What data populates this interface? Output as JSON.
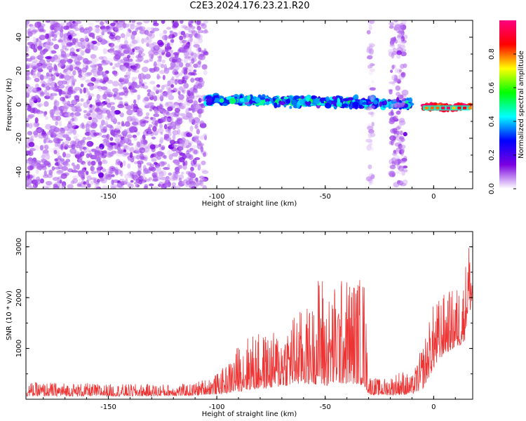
{
  "figure": {
    "title": "C2E3.2024.176.23.21.R20"
  },
  "chart_data": [
    {
      "type": "heatmap",
      "xlabel": "Height of straight line (km)",
      "ylabel": "Frequency (Hz)",
      "xlim": [
        -188,
        18
      ],
      "ylim": [
        -50,
        50
      ],
      "xticks": [
        -150,
        -100,
        -50,
        0
      ],
      "yticks": [
        -40,
        -20,
        0,
        20,
        40
      ],
      "grid": false,
      "colorbar": {
        "label": "Normalized spectral amplitude",
        "range": [
          0.0,
          1.0
        ],
        "ticks": [
          0.0,
          0.2,
          0.4,
          0.6,
          0.8
        ],
        "colormap": [
          "#ffffff",
          "#7a00e0",
          "#0000ff",
          "#00ffff",
          "#00ff00",
          "#ffff00",
          "#ff0000",
          "#ff0080"
        ]
      },
      "regions": [
        {
          "x": [
            -188,
            -105
          ],
          "y": [
            -50,
            50
          ],
          "amplitude": 0.08,
          "pattern": "scattered noise"
        },
        {
          "x": [
            -105,
            -10
          ],
          "y": [
            -10,
            8
          ],
          "amplitude": 0.35,
          "pattern": "band centered near 0 Hz"
        },
        {
          "x": [
            -30,
            -28
          ],
          "y": [
            -50,
            50
          ],
          "amplitude": 0.05,
          "pattern": "vertical noise strip"
        },
        {
          "x": [
            -20,
            -13
          ],
          "y": [
            -50,
            50
          ],
          "amplitude": 0.08,
          "pattern": "vertical noise strip"
        },
        {
          "x": [
            -5,
            17
          ],
          "y": [
            -3,
            0
          ],
          "amplitude": 0.9,
          "pattern": "strong narrow line near -2 Hz"
        }
      ]
    },
    {
      "type": "line",
      "xlabel": "Height of straight line (km)",
      "ylabel": "SNR (10 * v/v)",
      "xlim": [
        -188,
        18
      ],
      "ylim": [
        0,
        3300
      ],
      "xticks": [
        -150,
        -100,
        -50,
        0
      ],
      "yticks": [
        1000,
        2000,
        3000
      ],
      "grid": false,
      "color": "#ee3333",
      "envelope": {
        "x": [
          -188,
          -170,
          -150,
          -130,
          -112,
          -105,
          -100,
          -95,
          -90,
          -85,
          -80,
          -75,
          -70,
          -65,
          -60,
          -55,
          -52,
          -50,
          -45,
          -40,
          -35,
          -32,
          -30,
          -28,
          -25,
          -20,
          -15,
          -10,
          -5,
          0,
          5,
          10,
          14,
          16,
          18
        ],
        "low": [
          60,
          60,
          60,
          60,
          70,
          90,
          100,
          120,
          150,
          180,
          200,
          220,
          250,
          280,
          300,
          300,
          250,
          250,
          300,
          300,
          300,
          250,
          100,
          80,
          80,
          80,
          80,
          100,
          200,
          600,
          900,
          1000,
          1100,
          1700,
          1800
        ],
        "high": [
          330,
          330,
          300,
          300,
          300,
          420,
          500,
          700,
          1100,
          1300,
          1300,
          1300,
          1400,
          1700,
          1800,
          1900,
          2850,
          1950,
          2350,
          2450,
          2450,
          2450,
          500,
          450,
          400,
          450,
          600,
          450,
          1100,
          1900,
          2100,
          2200,
          2400,
          3280,
          2700
        ]
      }
    }
  ]
}
